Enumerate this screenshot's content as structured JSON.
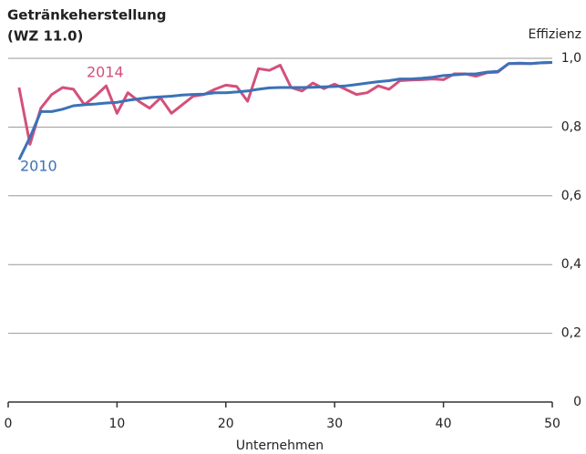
{
  "chart_data": {
    "type": "line",
    "title": "Getränkeherstellung",
    "subtitle": "(WZ 11.0)",
    "y_label": "Effizienz",
    "x_label": "Unternehmen",
    "x": [
      1,
      2,
      3,
      4,
      5,
      6,
      7,
      8,
      9,
      10,
      11,
      12,
      13,
      14,
      15,
      16,
      17,
      18,
      19,
      20,
      21,
      22,
      23,
      24,
      25,
      26,
      27,
      28,
      29,
      30,
      31,
      32,
      33,
      34,
      35,
      36,
      37,
      38,
      39,
      40,
      41,
      42,
      43,
      44,
      45,
      46,
      47,
      48,
      49,
      50
    ],
    "series": [
      {
        "name": "2014",
        "color": "#d4507a",
        "values": [
          0.915,
          0.75,
          0.855,
          0.895,
          0.915,
          0.91,
          0.865,
          0.89,
          0.92,
          0.84,
          0.9,
          0.875,
          0.855,
          0.885,
          0.84,
          0.865,
          0.89,
          0.895,
          0.91,
          0.922,
          0.918,
          0.875,
          0.97,
          0.965,
          0.98,
          0.915,
          0.905,
          0.928,
          0.912,
          0.925,
          0.91,
          0.895,
          0.9,
          0.92,
          0.91,
          0.935,
          0.937,
          0.938,
          0.94,
          0.938,
          0.955,
          0.955,
          0.948,
          0.958,
          0.96,
          0.985,
          0.985,
          0.985,
          0.987,
          0.988
        ]
      },
      {
        "name": "2010",
        "color": "#3a72b8",
        "values": [
          0.705,
          0.77,
          0.845,
          0.845,
          0.852,
          0.862,
          0.865,
          0.867,
          0.87,
          0.872,
          0.878,
          0.882,
          0.886,
          0.888,
          0.89,
          0.893,
          0.895,
          0.896,
          0.9,
          0.9,
          0.902,
          0.905,
          0.91,
          0.914,
          0.915,
          0.915,
          0.915,
          0.916,
          0.917,
          0.918,
          0.92,
          0.924,
          0.928,
          0.932,
          0.935,
          0.94,
          0.94,
          0.942,
          0.945,
          0.95,
          0.952,
          0.954,
          0.955,
          0.96,
          0.962,
          0.985,
          0.986,
          0.985,
          0.987,
          0.988
        ]
      }
    ],
    "xlim": [
      0,
      50
    ],
    "xticks": [
      0,
      10,
      20,
      30,
      40,
      50
    ],
    "ylim": [
      0,
      1
    ],
    "yticks": [
      0,
      {
        "value": 0.2,
        "label": "0,2"
      },
      {
        "value": 0.4,
        "label": "0,4"
      },
      {
        "value": 0.6,
        "label": "0,6"
      },
      {
        "value": 0.8,
        "label": "0,8"
      },
      {
        "value": 1,
        "label": "1,0"
      }
    ],
    "grid": true
  }
}
